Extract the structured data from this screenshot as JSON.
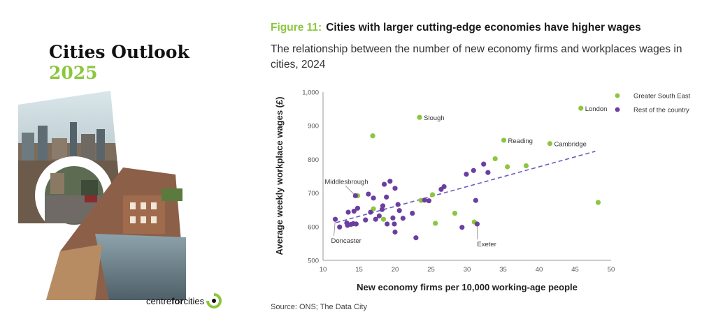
{
  "cover": {
    "title": "Cities Outlook",
    "year": "2025",
    "brand": {
      "part1": "centre",
      "part2": "for",
      "part3": "cities"
    }
  },
  "figure": {
    "number": "Figure 11:",
    "title": "Cities with larger cutting-edge economies have higher wages",
    "subtitle": "The relationship between the number of new economy firms and workplaces wages in cities, 2024",
    "source": "Source: ONS; The Data City"
  },
  "colors": {
    "green": "#8cc63f",
    "purple": "#6b3fa0",
    "trend": "#6b5bbf",
    "axis": "#999999"
  },
  "chart_data": {
    "type": "scatter",
    "xlabel": "New economy firms per 10,000 working-age people",
    "ylabel": "Average weekly workplace wages (£)",
    "xlim": [
      10,
      50
    ],
    "ylim": [
      500,
      1000
    ],
    "xticks": [
      "10",
      "15",
      "20",
      "25",
      "30",
      "35",
      "40",
      "45",
      "50"
    ],
    "yticks": [
      "500",
      "600",
      "700",
      "800",
      "900",
      "1,000"
    ],
    "legend_position": "top-right",
    "series": [
      {
        "name": "Greater South East",
        "color": "#8cc63f",
        "points": [
          {
            "x": 45.8,
            "y": 952,
            "label": "London"
          },
          {
            "x": 23.4,
            "y": 925,
            "label": "Slough"
          },
          {
            "x": 35.1,
            "y": 857,
            "label": "Reading"
          },
          {
            "x": 41.5,
            "y": 847,
            "label": "Cambridge"
          },
          {
            "x": 16.9,
            "y": 870
          },
          {
            "x": 33.9,
            "y": 802
          },
          {
            "x": 35.6,
            "y": 778
          },
          {
            "x": 38.2,
            "y": 781
          },
          {
            "x": 48.2,
            "y": 672
          },
          {
            "x": 14.8,
            "y": 692
          },
          {
            "x": 23.6,
            "y": 678
          },
          {
            "x": 25.2,
            "y": 695
          },
          {
            "x": 17.0,
            "y": 653
          },
          {
            "x": 18.4,
            "y": 622
          },
          {
            "x": 25.6,
            "y": 610
          },
          {
            "x": 28.3,
            "y": 640
          },
          {
            "x": 31.0,
            "y": 614
          }
        ]
      },
      {
        "name": "Rest of the country",
        "color": "#6b3fa0",
        "points": [
          {
            "x": 14.5,
            "y": 692,
            "label": "Middlesbrough"
          },
          {
            "x": 11.7,
            "y": 622,
            "label": "Doncaster"
          },
          {
            "x": 31.4,
            "y": 608,
            "label": "Exeter"
          },
          {
            "x": 12.3,
            "y": 599
          },
          {
            "x": 13.3,
            "y": 611
          },
          {
            "x": 13.4,
            "y": 604
          },
          {
            "x": 13.5,
            "y": 643
          },
          {
            "x": 13.9,
            "y": 607
          },
          {
            "x": 14.2,
            "y": 609
          },
          {
            "x": 14.6,
            "y": 608
          },
          {
            "x": 14.3,
            "y": 646
          },
          {
            "x": 14.8,
            "y": 655
          },
          {
            "x": 15.9,
            "y": 620
          },
          {
            "x": 16.3,
            "y": 697
          },
          {
            "x": 16.6,
            "y": 643
          },
          {
            "x": 17.0,
            "y": 685
          },
          {
            "x": 17.3,
            "y": 622
          },
          {
            "x": 17.8,
            "y": 632
          },
          {
            "x": 18.2,
            "y": 651
          },
          {
            "x": 18.3,
            "y": 662
          },
          {
            "x": 18.5,
            "y": 726
          },
          {
            "x": 18.8,
            "y": 688
          },
          {
            "x": 18.9,
            "y": 608
          },
          {
            "x": 19.3,
            "y": 735
          },
          {
            "x": 19.7,
            "y": 626
          },
          {
            "x": 19.9,
            "y": 608
          },
          {
            "x": 20.0,
            "y": 714
          },
          {
            "x": 20.0,
            "y": 584
          },
          {
            "x": 20.4,
            "y": 666
          },
          {
            "x": 20.6,
            "y": 648
          },
          {
            "x": 21.1,
            "y": 625
          },
          {
            "x": 22.4,
            "y": 640
          },
          {
            "x": 22.9,
            "y": 567
          },
          {
            "x": 24.1,
            "y": 679
          },
          {
            "x": 24.7,
            "y": 677
          },
          {
            "x": 26.4,
            "y": 711
          },
          {
            "x": 26.8,
            "y": 719
          },
          {
            "x": 29.3,
            "y": 598
          },
          {
            "x": 29.9,
            "y": 756
          },
          {
            "x": 30.9,
            "y": 767
          },
          {
            "x": 31.2,
            "y": 678
          },
          {
            "x": 32.3,
            "y": 786
          },
          {
            "x": 32.9,
            "y": 761
          }
        ]
      }
    ],
    "trendline": {
      "x": [
        11.8,
        47.8
      ],
      "y": [
        612,
        824
      ]
    }
  }
}
